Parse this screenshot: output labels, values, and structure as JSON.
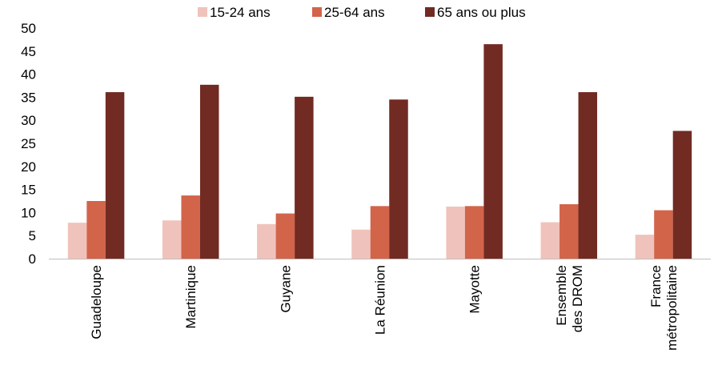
{
  "chart_data": {
    "type": "bar",
    "title": "",
    "xlabel": "",
    "ylabel": "",
    "categories": [
      [
        "Guadeloupe"
      ],
      [
        "Martinique"
      ],
      [
        "Guyane"
      ],
      [
        "La Réunion"
      ],
      [
        "Mayotte"
      ],
      [
        "Ensemble",
        "des DROM"
      ],
      [
        "France",
        "métropolitaine"
      ]
    ],
    "series": [
      {
        "name": "15-24 ans",
        "color": "#efc3bb",
        "values": [
          7.8,
          8.3,
          7.5,
          6.3,
          11.3,
          7.9,
          5.2
        ]
      },
      {
        "name": "25-64 ans",
        "color": "#d2644a",
        "values": [
          12.5,
          13.7,
          9.8,
          11.4,
          11.4,
          11.8,
          10.5
        ]
      },
      {
        "name": "65 ans ou plus",
        "color": "#712b22",
        "values": [
          36.1,
          37.7,
          35.1,
          34.5,
          46.5,
          36.1,
          27.7
        ]
      }
    ],
    "ylim": [
      0,
      50
    ],
    "yticks": [
      0,
      5,
      10,
      15,
      20,
      25,
      30,
      35,
      40,
      45,
      50
    ],
    "grid": false,
    "legend": "top-center"
  }
}
